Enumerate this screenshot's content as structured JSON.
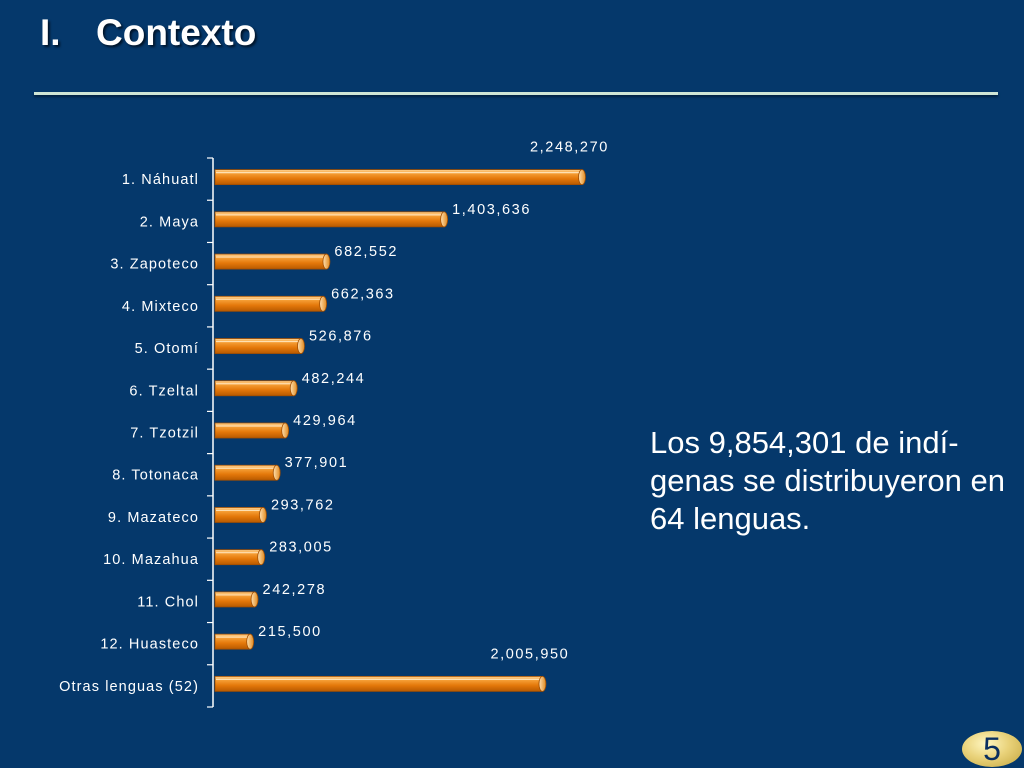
{
  "slide": {
    "title_number": "I.",
    "title_text": "Contexto",
    "side_text": "Los 9,854,301 de indí-genas se distribuyeron en 64 lenguas.",
    "page_number": "5"
  },
  "colors": {
    "background": "#05386b",
    "bar": "#f08a10",
    "bar_highlight": "#ffcf86",
    "bar_edge": "#a24e00",
    "text": "#ffffff"
  },
  "chart_data": {
    "type": "bar",
    "orientation": "horizontal",
    "categories": [
      "1. Náhuatl",
      "2. Maya",
      "3. Zapoteco",
      "4. Mixteco",
      "5. Otomí",
      "6. Tzeltal",
      "7. Tzotzil",
      "8. Totonaca",
      "9. Mazateco",
      "10. Mazahua",
      "11. Chol",
      "12. Huasteco",
      "Otras lenguas (52)"
    ],
    "values": [
      2248270,
      1403636,
      682552,
      662363,
      526876,
      482244,
      429964,
      377901,
      293762,
      283005,
      242278,
      215500,
      2005950
    ],
    "value_labels": [
      "2,248,270",
      "1,403,636",
      "682,552",
      "662,363",
      "526,876",
      "482,244",
      "429,964",
      "377,901",
      "293,762",
      "283,005",
      "242,278",
      "215,500",
      "2,005,950"
    ],
    "xlim": [
      0,
      2248270
    ],
    "grid": false,
    "legend": "none"
  }
}
